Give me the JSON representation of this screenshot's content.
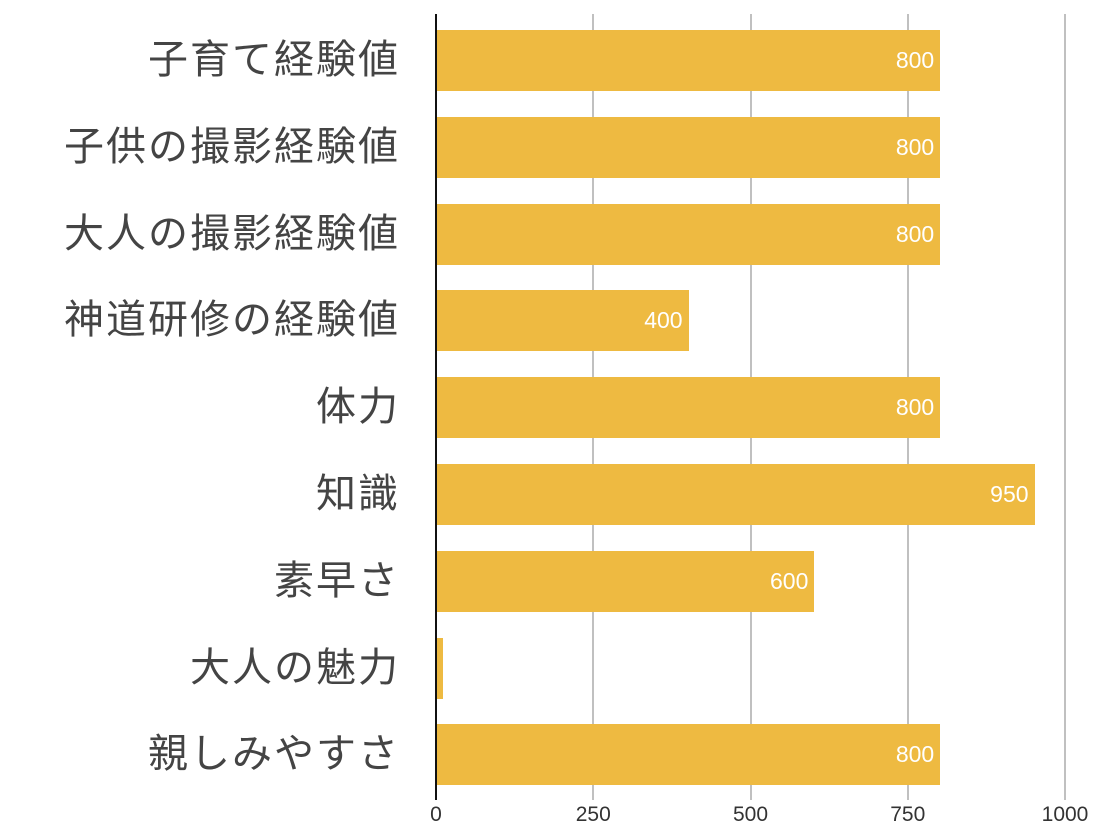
{
  "chart_data": {
    "type": "bar",
    "orientation": "horizontal",
    "title": "",
    "xlabel": "",
    "ylabel": "",
    "categories": [
      "子育て経験値",
      "子供の撮影経験値",
      "大人の撮影経験値",
      "神道研修の経験値",
      "体力",
      "知識",
      "素早さ",
      "大人の魅力",
      "親しみやすさ"
    ],
    "values": [
      800,
      800,
      800,
      400,
      800,
      950,
      600,
      10,
      800
    ],
    "value_labels": [
      "800",
      "800",
      "800",
      "400",
      "800",
      "950",
      "600",
      "",
      "800"
    ],
    "xlim": [
      0,
      1000
    ],
    "xticks": [
      0,
      250,
      500,
      750,
      1000
    ],
    "xtick_labels": [
      "0",
      "250",
      "500",
      "750",
      "1000"
    ],
    "grid": "vertical",
    "legend": null,
    "bar_color": "#EEBA41"
  }
}
